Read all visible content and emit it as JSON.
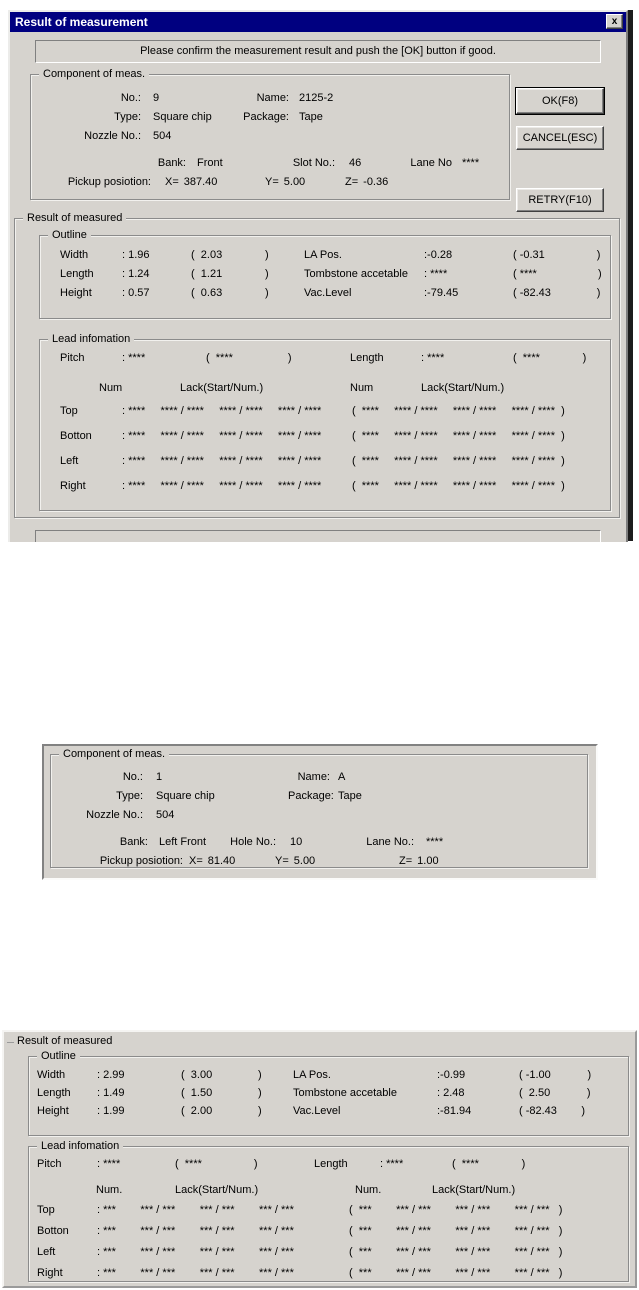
{
  "window": {
    "title": "Result of measurement",
    "close_glyph": "x",
    "message": "Please confirm the measurement result and push the [OK] button if good.",
    "buttons": {
      "ok": "OK(F8)",
      "cancel": "CANCEL(ESC)",
      "retry": "RETRY(F10)"
    }
  },
  "comp1": {
    "legend": "Component of meas.",
    "no_label": "No.:",
    "no_value": "9",
    "name_label": "Name:",
    "name_value": "2125-2",
    "type_label": "Type:",
    "type_value": "Square chip",
    "package_label": "Package:",
    "package_value": "Tape",
    "nozzle_label": "Nozzle No.:",
    "nozzle_value": "504",
    "bank_label": "Bank:",
    "bank_value": "Front",
    "slot_label": "Slot No.:",
    "slot_value": "46",
    "lane_label": "Lane No",
    "lane_value": "****",
    "pickup_label": "Pickup posiotion:",
    "x_label": "X=",
    "x_value": "387.40",
    "y_label": "Y=",
    "y_value": "5.00",
    "z_label": "Z=",
    "z_value": "-0.36"
  },
  "result1": {
    "legend": "Result of measured",
    "outline": {
      "legend": "Outline",
      "rows": [
        {
          "lname": "Width",
          "lval": ": 1.96",
          "lref": "(  2.03              )",
          "rname": "LA Pos.",
          "rval": ":-0.28",
          "rref": "( -0.31                 )"
        },
        {
          "lname": "Length",
          "lval": ": 1.24",
          "lref": "(  1.21              )",
          "rname": "Tombstone accetable",
          "rval": ": ****",
          "rref": "( ****                    )"
        },
        {
          "lname": "Height",
          "lval": ": 0.57",
          "lref": "(  0.63              )",
          "rname": "Vac.Level",
          "rval": ":-79.45",
          "rref": "( -82.43               )"
        }
      ]
    },
    "lead": {
      "legend": "Lead infomation",
      "pitch_label": "Pitch",
      "pitch_val": ": ****",
      "pitch_ref": "(  ****                  )",
      "length_label": "Length",
      "length_val": ": ****",
      "length_ref": "(  ****              )",
      "num_header": "Num",
      "lack_header": "Lack(Start/Num.)",
      "rows": [
        {
          "name": "Top",
          "meas": ": ****     **** / ****     **** / ****     **** / ****",
          "ref": "(  ****     **** / ****     **** / ****     **** / ****  )"
        },
        {
          "name": "Botton",
          "meas": ": ****     **** / ****     **** / ****     **** / ****",
          "ref": "(  ****     **** / ****     **** / ****     **** / ****  )"
        },
        {
          "name": "Left",
          "meas": ": ****     **** / ****     **** / ****     **** / ****",
          "ref": "(  ****     **** / ****     **** / ****     **** / ****  )"
        },
        {
          "name": "Right",
          "meas": ": ****     **** / ****     **** / ****     **** / ****",
          "ref": "(  ****     **** / ****     **** / ****     **** / ****  )"
        }
      ]
    }
  },
  "comp2": {
    "legend": "Component of meas.",
    "no_label": "No.:",
    "no_value": "1",
    "name_label": "Name:",
    "name_value": "A",
    "type_label": "Type:",
    "type_value": "Square chip",
    "package_label": "Package:",
    "package_value": "Tape",
    "nozzle_label": "Nozzle No.:",
    "nozzle_value": "504",
    "bank_label": "Bank:",
    "bank_value": "Left Front",
    "hole_label": "Hole No.:",
    "hole_value": "10",
    "lane_label": "Lane No.:",
    "lane_value": "****",
    "pickup_label": "Pickup posiotion:",
    "x_label": "X=",
    "x_value": "81.40",
    "y_label": "Y=",
    "y_value": "5.00",
    "z_label": "Z=",
    "z_value": "1.00"
  },
  "result2": {
    "legend": "Result of measured",
    "outline": {
      "legend": "Outline",
      "rows": [
        {
          "lname": "Width",
          "lval": ": 2.99",
          "lref": "(  3.00               )",
          "rname": "LA Pos.",
          "rval": ":-0.99",
          "rref": "( -1.00            )"
        },
        {
          "lname": "Length",
          "lval": ": 1.49",
          "lref": "(  1.50               )",
          "rname": "Tombstone accetable",
          "rval": ": 2.48",
          "rref": "(  2.50            )"
        },
        {
          "lname": "Height",
          "lval": ": 1.99",
          "lref": "(  2.00               )",
          "rname": "Vac.Level",
          "rval": ":-81.94",
          "rref": "( -82.43        )"
        }
      ]
    },
    "lead": {
      "legend": "Lead infomation",
      "pitch_label": "Pitch",
      "pitch_val": ": ****",
      "pitch_ref": "(  ****                 )",
      "length_label": "Length",
      "length_val": ": ****",
      "length_ref": "(  ****              )",
      "num_header": "Num.",
      "lack_header": "Lack(Start/Num.)",
      "rows": [
        {
          "name": "Top",
          "meas": ": ***        *** / ***        *** / ***        *** / ***",
          "ref": "(  ***        *** / ***        *** / ***        *** / ***   )"
        },
        {
          "name": "Botton",
          "meas": ": ***        *** / ***        *** / ***        *** / ***",
          "ref": "(  ***        *** / ***        *** / ***        *** / ***   )"
        },
        {
          "name": "Left",
          "meas": ": ***        *** / ***        *** / ***        *** / ***",
          "ref": "(  ***        *** / ***        *** / ***        *** / ***   )"
        },
        {
          "name": "Right",
          "meas": ": ***        *** / ***        *** / ***        *** / ***",
          "ref": "(  ***        *** / ***        *** / ***        *** / ***   )"
        }
      ]
    }
  }
}
